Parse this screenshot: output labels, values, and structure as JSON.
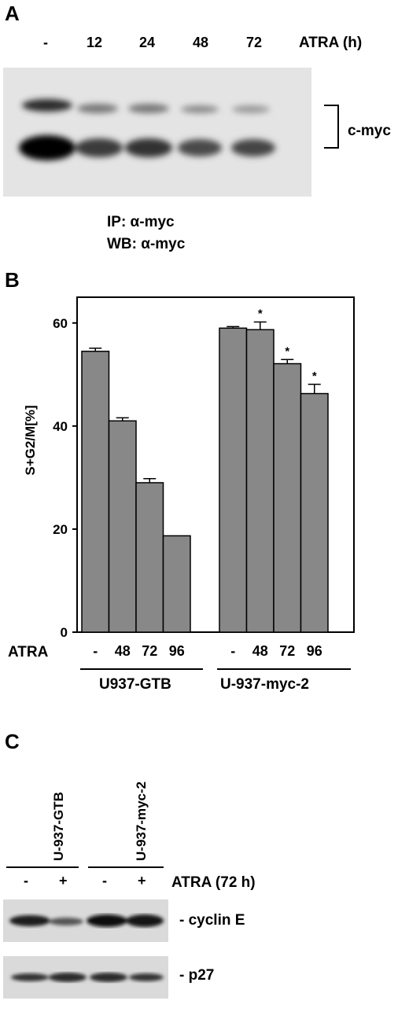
{
  "panel_a": {
    "letter": "A",
    "lanes": [
      "-",
      "12",
      "24",
      "48",
      "72"
    ],
    "treatment_label": "ATRA (h)",
    "band_label": "c-myc",
    "ip_label": "IP: α-myc",
    "wb_label": "WB: α-myc"
  },
  "panel_b": {
    "letter": "B",
    "row_label": "ATRA",
    "group_labels": [
      "U937-GTB",
      "U-937-myc-2"
    ],
    "significance_mark": "*"
  },
  "panel_c": {
    "letter": "C",
    "cell_lines": [
      "U-937-GTB",
      "U-937-myc-2"
    ],
    "lane_signs": [
      "-",
      "+",
      "-",
      "+"
    ],
    "treatment_label": "ATRA (72 h)",
    "bands": [
      "- cyclin E",
      "- p27"
    ]
  },
  "chart_data": {
    "type": "bar",
    "ylabel": "S+G2/M[%]",
    "ylim": [
      0,
      65
    ],
    "yticks": [
      0,
      20,
      40,
      60
    ],
    "grid": false,
    "categories": [
      "-",
      "48",
      "72",
      "96",
      "-",
      "48",
      "72",
      "96"
    ],
    "groups": [
      "U937-GTB",
      "U-937-myc-2"
    ],
    "values": [
      54.5,
      41,
      29,
      18.7,
      59,
      58.7,
      52.1,
      46.3
    ],
    "errors": [
      0.6,
      0.6,
      0.8,
      0,
      0.3,
      1.5,
      0.8,
      1.8
    ],
    "significant": [
      false,
      false,
      false,
      false,
      false,
      true,
      true,
      true
    ],
    "bar_color": "#888888"
  }
}
